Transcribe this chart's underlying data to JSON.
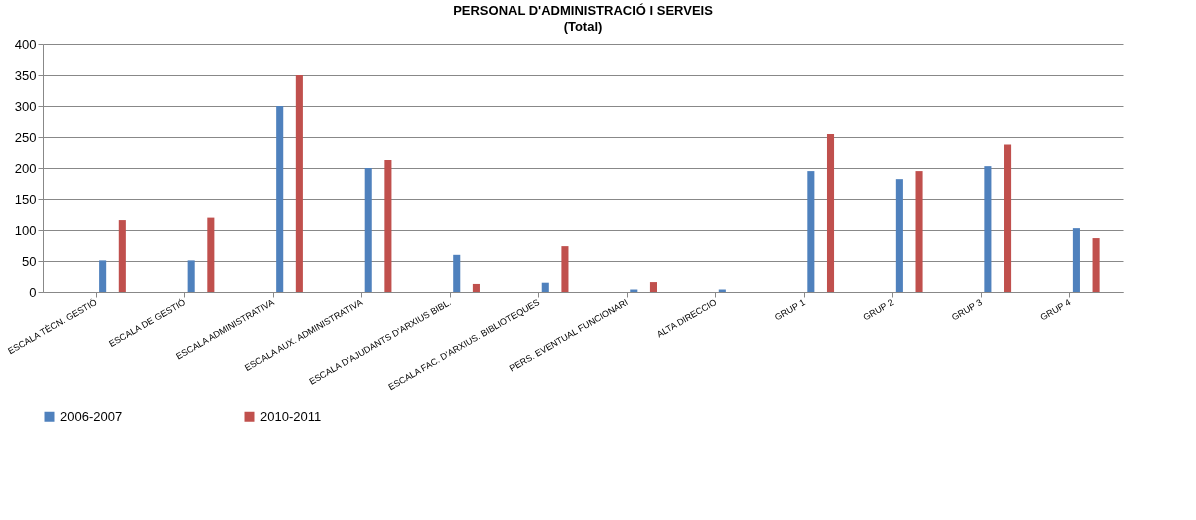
{
  "chart_data": {
    "type": "bar",
    "title": "PERSONAL D'ADMINISTRACIÓ  I SERVEIS",
    "subtitle": "(Total)",
    "categories": [
      "ESCALA TÈCN. GESTIÓ",
      "ESCALA DE GESTIÓ",
      "ESCALA ADMINISTRATIVA",
      "ESCALA AUX. ADMINISTRATIVA",
      "ESCALA D'AJUDANTS D'ARXIUS BIBL.",
      "ESCALA FAC. D'ARXIUS. BIBLIOTEQUES",
      "PERS. EVENTUAL  FUNCIONARI",
      "ALTA DIRECCIO",
      "GRUP 1",
      "GRUP 2",
      "GRUP 3",
      "GRUP 4"
    ],
    "series": [
      {
        "name": "2006-2007",
        "color": "#4f81bd",
        "values": [
          51,
          51,
          300,
          200,
          60,
          15,
          4,
          4,
          195,
          182,
          203,
          103
        ]
      },
      {
        "name": "2010-2011",
        "color": "#c0504d",
        "values": [
          116,
          120,
          350,
          213,
          13,
          74,
          16,
          null,
          255,
          195,
          238,
          87
        ]
      }
    ],
    "ylim": [
      0,
      400
    ],
    "yticks": [
      0,
      50,
      100,
      150,
      200,
      250,
      300,
      350,
      400
    ],
    "grid": "y",
    "legend": "bottom"
  }
}
